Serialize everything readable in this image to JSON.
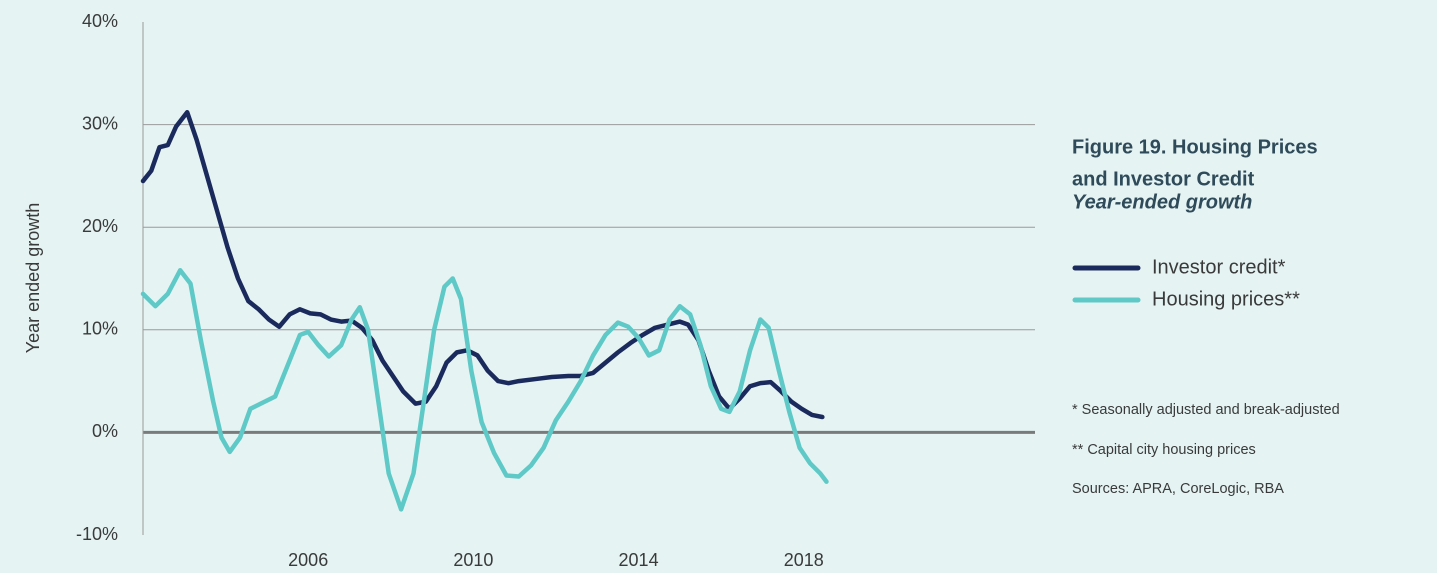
{
  "chart_data": {
    "type": "line",
    "title": [
      "Figure 19. Housing Prices",
      "and Investor Credit"
    ],
    "subtitle": "Year-ended growth",
    "y_label": "Year ended growth",
    "notes": [
      "* Seasonally adjusted and break-adjusted",
      "** Capital city housing prices",
      "Sources: APRA, CoreLogic, RBA"
    ],
    "xlim": [
      2002,
      2023.6
    ],
    "xticks": [
      2006,
      2010,
      2014,
      2018
    ],
    "ylim": [
      -10,
      40
    ],
    "yticks": [
      {
        "value": -10,
        "label": "-10%"
      },
      {
        "value": 0,
        "label": "0%"
      },
      {
        "value": 10,
        "label": "10%"
      },
      {
        "value": 20,
        "label": "20%"
      },
      {
        "value": 30,
        "label": "30%"
      },
      {
        "value": 40,
        "label": "40%"
      }
    ],
    "grid": true,
    "series": [
      {
        "name": "Investor credit*",
        "color": "#1b2a5c",
        "x": [
          2002.0,
          2002.2,
          2002.4,
          2002.6,
          2002.8,
          2003.07,
          2003.3,
          2003.55,
          2003.8,
          2004.05,
          2004.3,
          2004.55,
          2004.8,
          2005.05,
          2005.3,
          2005.55,
          2005.8,
          2006.05,
          2006.3,
          2006.55,
          2006.8,
          2007.05,
          2007.3,
          2007.55,
          2007.8,
          2008.05,
          2008.3,
          2008.6,
          2008.85,
          2009.1,
          2009.35,
          2009.6,
          2009.85,
          2010.1,
          2010.35,
          2010.6,
          2010.85,
          2011.1,
          2011.5,
          2011.9,
          2012.3,
          2012.6,
          2012.9,
          2013.2,
          2013.5,
          2013.8,
          2014.1,
          2014.4,
          2014.7,
          2015.0,
          2015.2,
          2015.45,
          2015.7,
          2015.95,
          2016.2,
          2016.45,
          2016.7,
          2016.95,
          2017.2,
          2017.45,
          2017.7,
          2017.95,
          2018.2,
          2018.45
        ],
        "values": [
          24.5,
          25.5,
          27.8,
          28,
          29.8,
          31.2,
          28.5,
          25,
          21.5,
          18,
          15,
          12.8,
          12,
          11,
          10.3,
          11.5,
          12,
          11.6,
          11.5,
          11,
          10.8,
          10.9,
          10.2,
          9,
          7,
          5.5,
          4,
          2.8,
          3,
          4.5,
          6.8,
          7.8,
          8,
          7.5,
          6,
          5,
          4.8,
          5,
          5.2,
          5.4,
          5.5,
          5.5,
          5.8,
          6.8,
          7.8,
          8.7,
          9.5,
          10.2,
          10.5,
          10.8,
          10.5,
          9,
          6,
          3.5,
          2.3,
          3.3,
          4.5,
          4.8,
          4.9,
          4,
          3,
          2.3,
          1.7,
          1.5
        ]
      },
      {
        "name": "Housing prices**",
        "color": "#5ec9c7",
        "x": [
          2002.0,
          2002.3,
          2002.6,
          2002.9,
          2003.15,
          2003.4,
          2003.7,
          2003.9,
          2004.1,
          2004.35,
          2004.6,
          2004.9,
          2005.2,
          2005.5,
          2005.8,
          2006.0,
          2006.25,
          2006.5,
          2006.8,
          2007.05,
          2007.25,
          2007.45,
          2007.7,
          2007.95,
          2008.25,
          2008.55,
          2008.8,
          2009.05,
          2009.3,
          2009.5,
          2009.7,
          2009.95,
          2010.2,
          2010.5,
          2010.8,
          2011.1,
          2011.4,
          2011.7,
          2012.0,
          2012.3,
          2012.6,
          2012.9,
          2013.2,
          2013.5,
          2013.75,
          2014.0,
          2014.25,
          2014.5,
          2014.75,
          2015.0,
          2015.25,
          2015.5,
          2015.75,
          2016.0,
          2016.2,
          2016.45,
          2016.7,
          2016.95,
          2017.15,
          2017.4,
          2017.65,
          2017.9,
          2018.15,
          2018.4,
          2018.55
        ],
        "values": [
          13.5,
          12.3,
          13.5,
          15.8,
          14.5,
          9,
          3,
          -0.5,
          -1.9,
          -0.5,
          2.3,
          2.9,
          3.5,
          6.5,
          9.5,
          9.8,
          8.5,
          7.4,
          8.5,
          11,
          12.2,
          10,
          3,
          -4,
          -7.5,
          -4,
          3,
          10,
          14.2,
          15,
          13,
          6,
          1,
          -2,
          -4.2,
          -4.3,
          -3.2,
          -1.5,
          1.2,
          3,
          5,
          7.5,
          9.5,
          10.7,
          10.3,
          9.2,
          7.5,
          8,
          11,
          12.3,
          11.5,
          8.5,
          4.5,
          2.3,
          2,
          4,
          8,
          11,
          10.2,
          6,
          2,
          -1.5,
          -3,
          -4,
          -4.8
        ]
      }
    ]
  }
}
